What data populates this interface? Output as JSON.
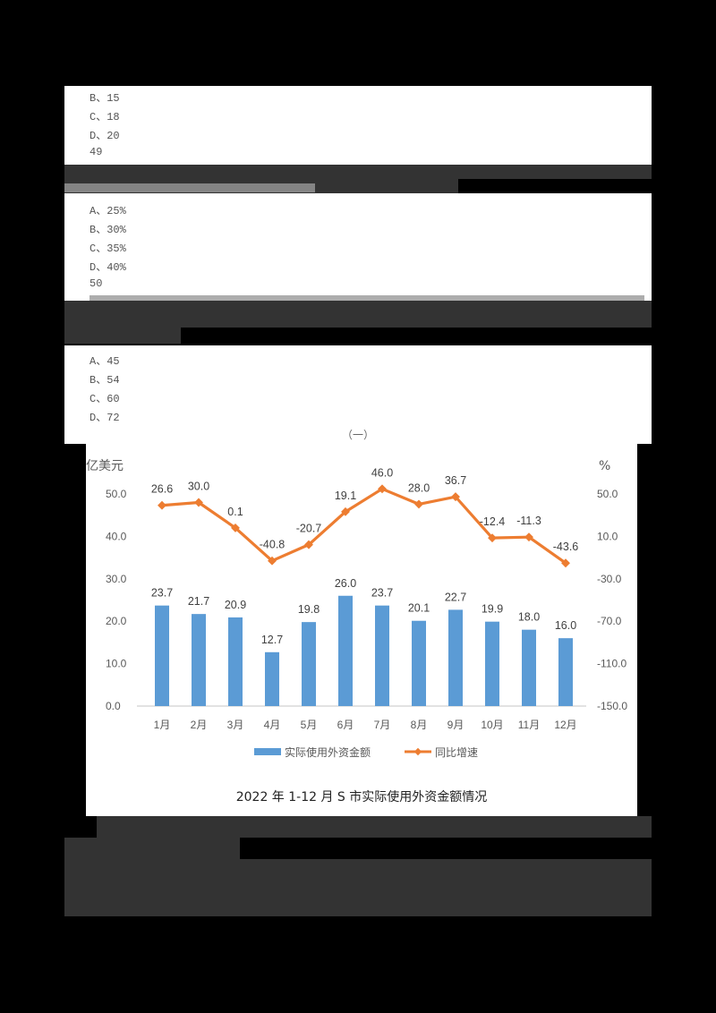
{
  "q48_tail": {
    "options": [
      "B、15",
      "C、18",
      "D、20"
    ]
  },
  "q49": {
    "number": "49",
    "options": [
      "A、25%",
      "B、30%",
      "C、35%",
      "D、40%"
    ]
  },
  "q50": {
    "number": "50",
    "options": [
      "A、45",
      "B、54",
      "C、60",
      "D、72"
    ]
  },
  "section_label": "（一）",
  "colors": {
    "bar": "#5B9BD5",
    "line": "#ED7D31",
    "axis_text": "#595959",
    "gridline": "#D9D9D9",
    "redaction": "#333333"
  },
  "chart_data": {
    "type": "bar+line",
    "title": "2022 年 1-12 月 S 市实际使用外资金额情况",
    "xlabel": "",
    "ylabel_left": "亿美元",
    "ylabel_right": "%",
    "categories": [
      "1月",
      "2月",
      "3月",
      "4月",
      "5月",
      "6月",
      "7月",
      "8月",
      "9月",
      "10月",
      "11月",
      "12月"
    ],
    "series": [
      {
        "name": "实际使用外资金额",
        "type": "bar",
        "axis": "left",
        "values": [
          23.7,
          21.7,
          20.9,
          12.7,
          19.8,
          26.0,
          23.7,
          20.1,
          22.7,
          19.9,
          18.0,
          16.0
        ]
      },
      {
        "name": "同比增速",
        "type": "line",
        "axis": "right",
        "values": [
          26.6,
          30.0,
          0.1,
          -40.8,
          -20.7,
          19.1,
          46.0,
          28.0,
          36.7,
          -12.4,
          -11.3,
          -43.6
        ]
      }
    ],
    "left_ticks": [
      "50.0",
      "40.0",
      "30.0",
      "20.0",
      "10.0",
      "0.0"
    ],
    "right_ticks": [
      "50.0",
      "10.0",
      "-30.0",
      "-70.0",
      "-110.0",
      "-150.0"
    ],
    "ylim_left": [
      0,
      50
    ],
    "ylim_right": [
      -150,
      50
    ],
    "grid": false,
    "legend_position": "bottom",
    "bar_labels": [
      "23.7",
      "21.7",
      "20.9",
      "12.7",
      "19.8",
      "26.0",
      "23.7",
      "20.1",
      "22.7",
      "19.9",
      "18.0",
      "16.0"
    ],
    "line_labels": [
      "26.6",
      "30.0",
      "0.1",
      "-40.8",
      "-20.7",
      "19.1",
      "46.0",
      "28.0",
      "36.7",
      "-12.4",
      "-11.3",
      "-43.6"
    ]
  }
}
